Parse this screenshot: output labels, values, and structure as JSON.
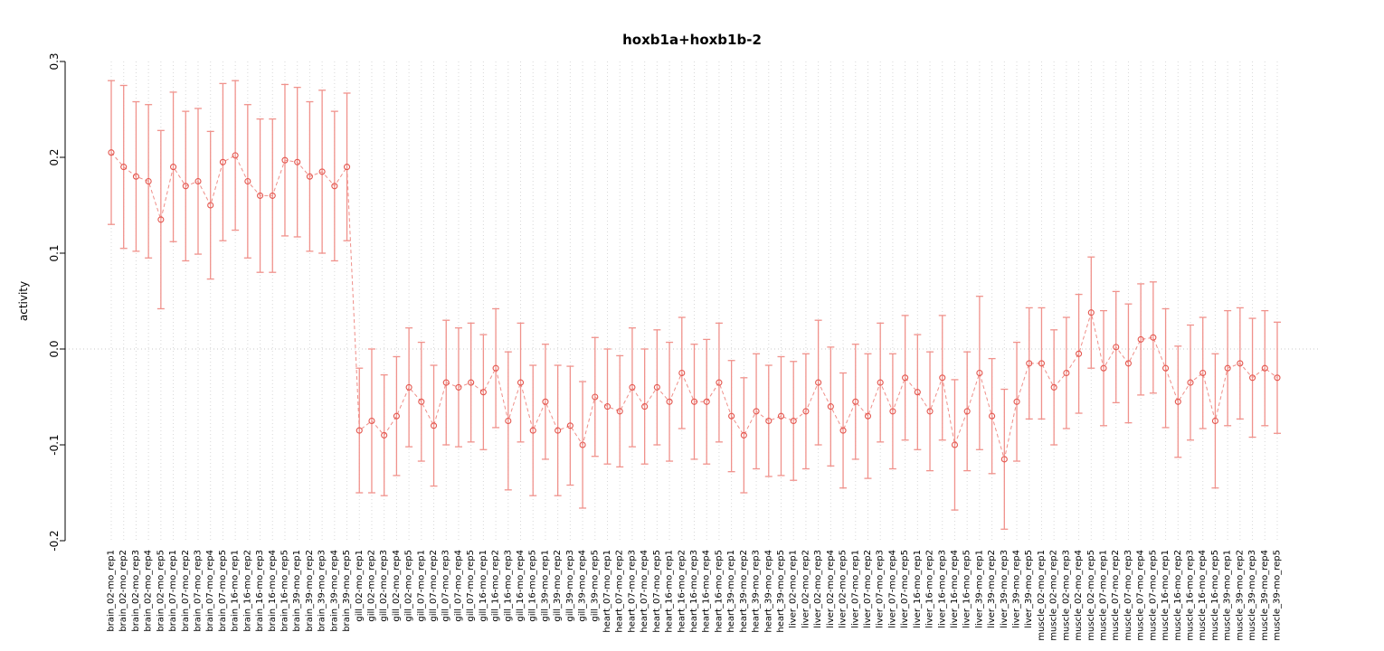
{
  "page": {
    "background": "#ffffff"
  },
  "chart_data": {
    "type": "scatter",
    "title": "hoxb1a+hoxb1b-2",
    "ylabel": "activity",
    "xlabel": "",
    "ylim": [
      -0.2,
      0.3
    ],
    "yticks": [
      -0.2,
      -0.1,
      0.0,
      0.1,
      0.2,
      0.3
    ],
    "grid": "vertical-dotted",
    "zero_line": true,
    "legend": "none",
    "point_style": "open-circle",
    "line_style": "dashed",
    "colors": {
      "point": "#e4564e",
      "line": "#ef8e88",
      "error_bar": "#f0928c",
      "grid": "#d8d8d8",
      "zero_line": "#c8c8c8",
      "axis": "#000000",
      "text": "#000000"
    },
    "categories": [
      "brain_02-mo_rep1",
      "brain_02-mo_rep2",
      "brain_02-mo_rep3",
      "brain_02-mo_rep4",
      "brain_02-mo_rep5",
      "brain_07-mo_rep1",
      "brain_07-mo_rep2",
      "brain_07-mo_rep3",
      "brain_07-mo_rep4",
      "brain_07-mo_rep5",
      "brain_16-mo_rep1",
      "brain_16-mo_rep2",
      "brain_16-mo_rep3",
      "brain_16-mo_rep4",
      "brain_16-mo_rep5",
      "brain_39-mo_rep1",
      "brain_39-mo_rep2",
      "brain_39-mo_rep3",
      "brain_39-mo_rep4",
      "brain_39-mo_rep5",
      "gill_02-mo_rep1",
      "gill_02-mo_rep2",
      "gill_02-mo_rep3",
      "gill_02-mo_rep4",
      "gill_02-mo_rep5",
      "gill_07-mo_rep1",
      "gill_07-mo_rep2",
      "gill_07-mo_rep3",
      "gill_07-mo_rep4",
      "gill_07-mo_rep5",
      "gill_16-mo_rep1",
      "gill_16-mo_rep2",
      "gill_16-mo_rep3",
      "gill_16-mo_rep4",
      "gill_16-mo_rep5",
      "gill_39-mo_rep1",
      "gill_39-mo_rep2",
      "gill_39-mo_rep3",
      "gill_39-mo_rep4",
      "gill_39-mo_rep5",
      "heart_07-mo_rep1",
      "heart_07-mo_rep2",
      "heart_07-mo_rep3",
      "heart_07-mo_rep4",
      "heart_07-mo_rep5",
      "heart_16-mo_rep1",
      "heart_16-mo_rep2",
      "heart_16-mo_rep3",
      "heart_16-mo_rep4",
      "heart_16-mo_rep5",
      "heart_39-mo_rep1",
      "heart_39-mo_rep2",
      "heart_39-mo_rep3",
      "heart_39-mo_rep4",
      "heart_39-mo_rep5",
      "liver_02-mo_rep1",
      "liver_02-mo_rep2",
      "liver_02-mo_rep3",
      "liver_02-mo_rep4",
      "liver_02-mo_rep5",
      "liver_07-mo_rep1",
      "liver_07-mo_rep2",
      "liver_07-mo_rep3",
      "liver_07-mo_rep4",
      "liver_07-mo_rep5",
      "liver_16-mo_rep1",
      "liver_16-mo_rep2",
      "liver_16-mo_rep3",
      "liver_16-mo_rep4",
      "liver_16-mo_rep5",
      "liver_39-mo_rep1",
      "liver_39-mo_rep2",
      "liver_39-mo_rep3",
      "liver_39-mo_rep4",
      "liver_39-mo_rep5",
      "muscle_02-mo_rep1",
      "muscle_02-mo_rep2",
      "muscle_02-mo_rep3",
      "muscle_02-mo_rep4",
      "muscle_02-mo_rep5",
      "muscle_07-mo_rep1",
      "muscle_07-mo_rep2",
      "muscle_07-mo_rep3",
      "muscle_07-mo_rep4",
      "muscle_07-mo_rep5",
      "muscle_16-mo_rep1",
      "muscle_16-mo_rep2",
      "muscle_16-mo_rep3",
      "muscle_16-mo_rep4",
      "muscle_16-mo_rep5",
      "muscle_39-mo_rep1",
      "muscle_39-mo_rep2",
      "muscle_39-mo_rep3",
      "muscle_39-mo_rep4",
      "muscle_39-mo_rep5"
    ],
    "values": [
      0.205,
      0.19,
      0.18,
      0.175,
      0.135,
      0.19,
      0.17,
      0.175,
      0.15,
      0.195,
      0.202,
      0.175,
      0.16,
      0.16,
      0.197,
      0.195,
      0.18,
      0.185,
      0.17,
      0.19,
      -0.085,
      -0.075,
      -0.09,
      -0.07,
      -0.04,
      -0.055,
      -0.08,
      -0.035,
      -0.04,
      -0.035,
      -0.045,
      -0.02,
      -0.075,
      -0.035,
      -0.085,
      -0.055,
      -0.085,
      -0.08,
      -0.1,
      -0.05,
      -0.06,
      -0.065,
      -0.04,
      -0.06,
      -0.04,
      -0.055,
      -0.025,
      -0.055,
      -0.055,
      -0.035,
      -0.07,
      -0.09,
      -0.065,
      -0.075,
      -0.07,
      -0.075,
      -0.065,
      -0.035,
      -0.06,
      -0.085,
      -0.055,
      -0.07,
      -0.035,
      -0.065,
      -0.03,
      -0.045,
      -0.065,
      -0.03,
      -0.1,
      -0.065,
      -0.025,
      -0.07,
      -0.115,
      -0.055,
      -0.015,
      -0.015,
      -0.04,
      -0.025,
      -0.005,
      0.038,
      -0.02,
      0.002,
      -0.015,
      0.01,
      0.012,
      -0.02,
      -0.055,
      -0.035,
      -0.025,
      -0.075,
      -0.02,
      -0.015,
      -0.03,
      -0.02,
      -0.03
    ],
    "errors": [
      0.075,
      0.085,
      0.078,
      0.08,
      0.093,
      0.078,
      0.078,
      0.076,
      0.077,
      0.082,
      0.078,
      0.08,
      0.08,
      0.08,
      0.079,
      0.078,
      0.078,
      0.085,
      0.078,
      0.077,
      0.065,
      0.075,
      0.063,
      0.062,
      0.062,
      0.062,
      0.063,
      0.065,
      0.062,
      0.062,
      0.06,
      0.062,
      0.072,
      0.062,
      0.068,
      0.06,
      0.068,
      0.062,
      0.066,
      0.062,
      0.06,
      0.058,
      0.062,
      0.06,
      0.06,
      0.062,
      0.058,
      0.06,
      0.065,
      0.062,
      0.058,
      0.06,
      0.06,
      0.058,
      0.062,
      0.062,
      0.06,
      0.065,
      0.062,
      0.06,
      0.06,
      0.065,
      0.062,
      0.06,
      0.065,
      0.06,
      0.062,
      0.065,
      0.068,
      0.062,
      0.08,
      0.06,
      0.073,
      0.062,
      0.058,
      0.058,
      0.06,
      0.058,
      0.062,
      0.058,
      0.06,
      0.058,
      0.062,
      0.058,
      0.058,
      0.062,
      0.058,
      0.06,
      0.058,
      0.07,
      0.06,
      0.058,
      0.062,
      0.06,
      0.058
    ]
  }
}
